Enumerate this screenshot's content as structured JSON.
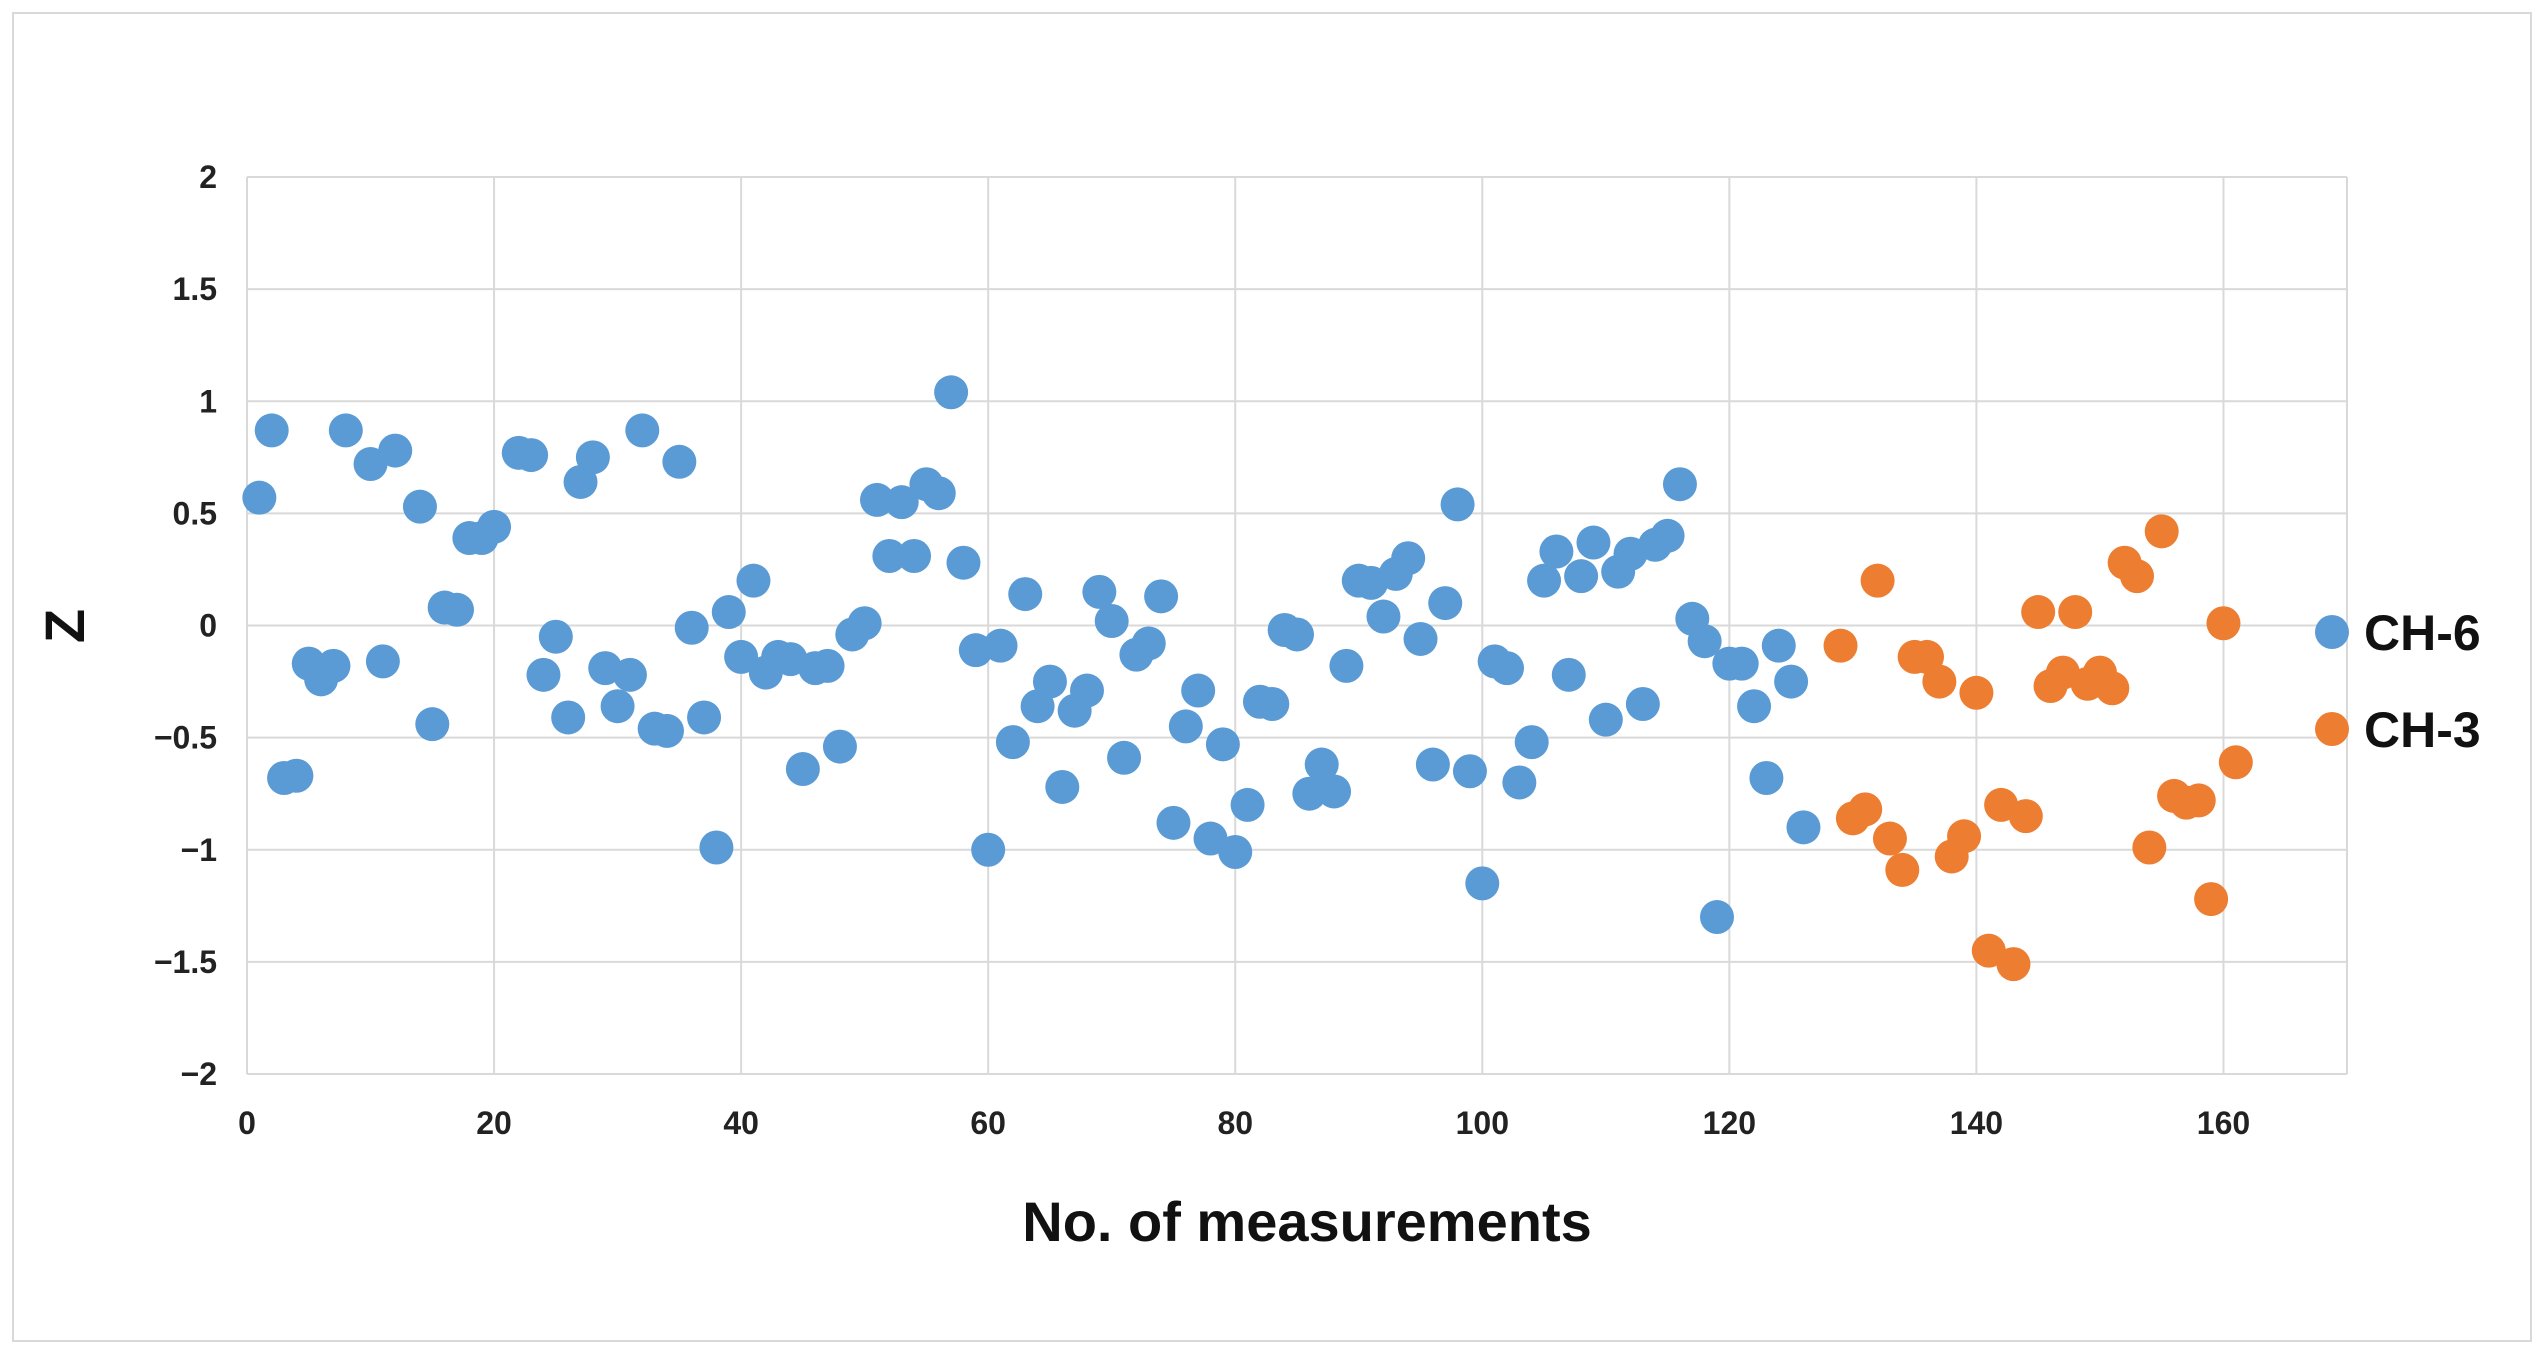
{
  "chart_data": {
    "type": "scatter",
    "title": "",
    "xlabel": "No. of measurements",
    "ylabel": "Z",
    "xlim": [
      0,
      170
    ],
    "ylim": [
      -2,
      2
    ],
    "x_ticks": [
      0,
      20,
      40,
      60,
      80,
      100,
      120,
      140,
      160
    ],
    "y_ticks": [
      -2,
      -1.5,
      -1,
      -0.5,
      0,
      0.5,
      1,
      1.5,
      2
    ],
    "y_tick_labels": [
      "−2",
      "−1.5",
      "−1",
      "−0.5",
      "0",
      "0.5",
      "1",
      "1.5",
      "2"
    ],
    "grid": true,
    "legend_position": "right",
    "series": [
      {
        "name": "CH-6",
        "color": "#5b9bd5",
        "points": [
          [
            1,
            0.57
          ],
          [
            2,
            0.87
          ],
          [
            3,
            -0.68
          ],
          [
            4,
            -0.67
          ],
          [
            5,
            -0.17
          ],
          [
            6,
            -0.24
          ],
          [
            7,
            -0.18
          ],
          [
            8,
            0.87
          ],
          [
            10,
            0.72
          ],
          [
            11,
            -0.16
          ],
          [
            12,
            0.78
          ],
          [
            14,
            0.53
          ],
          [
            15,
            -0.44
          ],
          [
            16,
            0.08
          ],
          [
            17,
            0.07
          ],
          [
            18,
            0.39
          ],
          [
            19,
            0.39
          ],
          [
            20,
            0.44
          ],
          [
            22,
            0.77
          ],
          [
            23,
            0.76
          ],
          [
            24,
            -0.22
          ],
          [
            25,
            -0.05
          ],
          [
            26,
            -0.41
          ],
          [
            27,
            0.64
          ],
          [
            28,
            0.75
          ],
          [
            29,
            -0.19
          ],
          [
            30,
            -0.36
          ],
          [
            31,
            -0.22
          ],
          [
            32,
            0.87
          ],
          [
            33,
            -0.46
          ],
          [
            34,
            -0.47
          ],
          [
            35,
            0.73
          ],
          [
            36,
            -0.01
          ],
          [
            37,
            -0.41
          ],
          [
            38,
            -0.99
          ],
          [
            39,
            0.06
          ],
          [
            40,
            -0.14
          ],
          [
            41,
            0.2
          ],
          [
            42,
            -0.21
          ],
          [
            43,
            -0.14
          ],
          [
            44,
            -0.15
          ],
          [
            45,
            -0.64
          ],
          [
            46,
            -0.19
          ],
          [
            47,
            -0.18
          ],
          [
            48,
            -0.54
          ],
          [
            49,
            -0.04
          ],
          [
            50,
            0.01
          ],
          [
            51,
            0.56
          ],
          [
            52,
            0.31
          ],
          [
            53,
            0.55
          ],
          [
            54,
            0.31
          ],
          [
            55,
            0.63
          ],
          [
            56,
            0.59
          ],
          [
            57,
            1.04
          ],
          [
            58,
            0.28
          ],
          [
            59,
            -0.11
          ],
          [
            60,
            -1.0
          ],
          [
            61,
            -0.09
          ],
          [
            62,
            -0.52
          ],
          [
            63,
            0.14
          ],
          [
            64,
            -0.36
          ],
          [
            65,
            -0.25
          ],
          [
            66,
            -0.72
          ],
          [
            67,
            -0.38
          ],
          [
            68,
            -0.29
          ],
          [
            69,
            0.15
          ],
          [
            70,
            0.02
          ],
          [
            71,
            -0.59
          ],
          [
            72,
            -0.13
          ],
          [
            73,
            -0.08
          ],
          [
            74,
            0.13
          ],
          [
            75,
            -0.88
          ],
          [
            76,
            -0.45
          ],
          [
            77,
            -0.29
          ],
          [
            78,
            -0.95
          ],
          [
            79,
            -0.53
          ],
          [
            80,
            -1.01
          ],
          [
            81,
            -0.8
          ],
          [
            82,
            -0.34
          ],
          [
            83,
            -0.35
          ],
          [
            84,
            -0.02
          ],
          [
            85,
            -0.04
          ],
          [
            86,
            -0.75
          ],
          [
            87,
            -0.62
          ],
          [
            88,
            -0.74
          ],
          [
            89,
            -0.18
          ],
          [
            90,
            0.2
          ],
          [
            91,
            0.19
          ],
          [
            92,
            0.04
          ],
          [
            93,
            0.23
          ],
          [
            94,
            0.3
          ],
          [
            95,
            -0.06
          ],
          [
            96,
            -0.62
          ],
          [
            97,
            0.1
          ],
          [
            98,
            0.54
          ],
          [
            99,
            -0.65
          ],
          [
            100,
            -1.15
          ],
          [
            101,
            -0.16
          ],
          [
            102,
            -0.19
          ],
          [
            103,
            -0.7
          ],
          [
            104,
            -0.52
          ],
          [
            105,
            0.2
          ],
          [
            106,
            0.33
          ],
          [
            107,
            -0.22
          ],
          [
            108,
            0.22
          ],
          [
            109,
            0.37
          ],
          [
            110,
            -0.42
          ],
          [
            111,
            0.24
          ],
          [
            112,
            0.32
          ],
          [
            113,
            -0.35
          ],
          [
            114,
            0.36
          ],
          [
            115,
            0.4
          ],
          [
            116,
            0.63
          ],
          [
            117,
            0.03
          ],
          [
            118,
            -0.07
          ],
          [
            119,
            -1.3
          ],
          [
            120,
            -0.17
          ],
          [
            121,
            -0.17
          ],
          [
            122,
            -0.36
          ],
          [
            123,
            -0.68
          ],
          [
            124,
            -0.09
          ],
          [
            125,
            -0.25
          ],
          [
            126,
            -0.9
          ]
        ]
      },
      {
        "name": "CH-3",
        "color": "#ed7d31",
        "points": [
          [
            129,
            -0.09
          ],
          [
            130,
            -0.86
          ],
          [
            131,
            -0.82
          ],
          [
            132,
            0.2
          ],
          [
            133,
            -0.95
          ],
          [
            134,
            -1.09
          ],
          [
            135,
            -0.14
          ],
          [
            136,
            -0.14
          ],
          [
            137,
            -0.25
          ],
          [
            138,
            -1.03
          ],
          [
            139,
            -0.94
          ],
          [
            140,
            -0.3
          ],
          [
            141,
            -1.45
          ],
          [
            142,
            -0.8
          ],
          [
            143,
            -1.51
          ],
          [
            144,
            -0.85
          ],
          [
            145,
            0.06
          ],
          [
            146,
            -0.27
          ],
          [
            147,
            -0.21
          ],
          [
            148,
            0.06
          ],
          [
            149,
            -0.26
          ],
          [
            150,
            -0.21
          ],
          [
            151,
            -0.28
          ],
          [
            152,
            0.28
          ],
          [
            153,
            0.22
          ],
          [
            154,
            -0.99
          ],
          [
            155,
            0.42
          ],
          [
            156,
            -0.76
          ],
          [
            157,
            -0.79
          ],
          [
            158,
            -0.78
          ],
          [
            159,
            -1.22
          ],
          [
            160,
            0.01
          ],
          [
            161,
            -0.61
          ]
        ]
      }
    ]
  }
}
